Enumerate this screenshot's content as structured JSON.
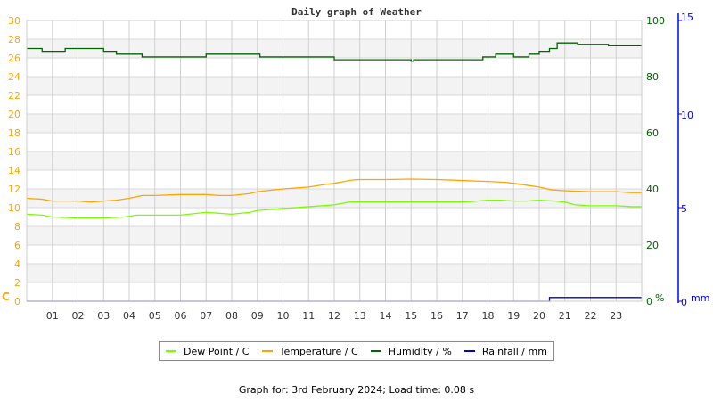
{
  "chart_data": {
    "type": "line",
    "title": "Daily graph of Weather",
    "x": [
      0,
      1,
      2,
      3,
      4,
      5,
      6,
      7,
      8,
      9,
      10,
      11,
      12,
      13,
      14,
      15,
      16,
      17,
      18,
      19,
      20,
      21,
      22,
      23,
      24
    ],
    "xticks": [
      "01",
      "02",
      "03",
      "04",
      "05",
      "06",
      "07",
      "08",
      "09",
      "10",
      "11",
      "12",
      "13",
      "14",
      "15",
      "16",
      "17",
      "18",
      "19",
      "20",
      "21",
      "22",
      "23"
    ],
    "xlim": [
      0,
      24
    ],
    "grid": true,
    "axes": {
      "left": {
        "label": "C",
        "ylim": [
          0,
          30
        ],
        "ticks": [
          0,
          2,
          4,
          6,
          8,
          10,
          12,
          14,
          16,
          18,
          20,
          22,
          24,
          26,
          28,
          30
        ],
        "color": "#ffa500"
      },
      "right1": {
        "label": "%",
        "ylim": [
          0,
          100
        ],
        "ticks": [
          0,
          20,
          40,
          60,
          80,
          100
        ],
        "color": "#006400"
      },
      "right2": {
        "label": "mm",
        "ylim": [
          0,
          15
        ],
        "ticks": [
          0,
          5,
          10,
          15
        ],
        "color": "#0000ff"
      }
    },
    "series": [
      {
        "name": "Dew Point / C",
        "axis": "left",
        "color": "#7cfc00",
        "points": [
          [
            0,
            9.3
          ],
          [
            0.6,
            9.2
          ],
          [
            1,
            9.0
          ],
          [
            2,
            8.9
          ],
          [
            3,
            8.9
          ],
          [
            3.8,
            9.0
          ],
          [
            4.3,
            9.2
          ],
          [
            4.6,
            9.2
          ],
          [
            5,
            9.2
          ],
          [
            6,
            9.2
          ],
          [
            7,
            9.5
          ],
          [
            7.5,
            9.4
          ],
          [
            8,
            9.3
          ],
          [
            8.7,
            9.5
          ],
          [
            9,
            9.7
          ],
          [
            10,
            9.9
          ],
          [
            11,
            10.1
          ],
          [
            12,
            10.3
          ],
          [
            12.6,
            10.6
          ],
          [
            13,
            10.6
          ],
          [
            15,
            10.6
          ],
          [
            16,
            10.6
          ],
          [
            17,
            10.6
          ],
          [
            17.6,
            10.7
          ],
          [
            18,
            10.8
          ],
          [
            18.5,
            10.8
          ],
          [
            19,
            10.7
          ],
          [
            19.5,
            10.7
          ],
          [
            20,
            10.8
          ],
          [
            20.6,
            10.7
          ],
          [
            21,
            10.6
          ],
          [
            21.4,
            10.3
          ],
          [
            22,
            10.2
          ],
          [
            23,
            10.2
          ],
          [
            23.6,
            10.1
          ],
          [
            24,
            10.1
          ]
        ]
      },
      {
        "name": "Temperature / C",
        "axis": "left",
        "color": "#ffa500",
        "points": [
          [
            0,
            11.0
          ],
          [
            0.6,
            10.9
          ],
          [
            1,
            10.7
          ],
          [
            2,
            10.7
          ],
          [
            2.5,
            10.6
          ],
          [
            3,
            10.7
          ],
          [
            3.5,
            10.8
          ],
          [
            4,
            11.0
          ],
          [
            4.5,
            11.3
          ],
          [
            5,
            11.3
          ],
          [
            6,
            11.4
          ],
          [
            7,
            11.4
          ],
          [
            7.5,
            11.3
          ],
          [
            8,
            11.3
          ],
          [
            8.7,
            11.5
          ],
          [
            9,
            11.7
          ],
          [
            10,
            12.0
          ],
          [
            11,
            12.2
          ],
          [
            11.7,
            12.5
          ],
          [
            12,
            12.6
          ],
          [
            12.7,
            12.95
          ],
          [
            13,
            13.0
          ],
          [
            14,
            13.0
          ],
          [
            15,
            13.05
          ],
          [
            16,
            13.0
          ],
          [
            17,
            12.9
          ],
          [
            18,
            12.8
          ],
          [
            18.7,
            12.7
          ],
          [
            19,
            12.6
          ],
          [
            19.5,
            12.4
          ],
          [
            20,
            12.2
          ],
          [
            20.5,
            11.9
          ],
          [
            21,
            11.8
          ],
          [
            22,
            11.7
          ],
          [
            23,
            11.7
          ],
          [
            23.6,
            11.6
          ],
          [
            24,
            11.6
          ]
        ]
      },
      {
        "name": "Humidity / %",
        "axis": "right1",
        "color": "#006400",
        "step": true,
        "points": [
          [
            0,
            90
          ],
          [
            0.6,
            89
          ],
          [
            1.5,
            90
          ],
          [
            3,
            89
          ],
          [
            3.5,
            88
          ],
          [
            4.5,
            87
          ],
          [
            7,
            88
          ],
          [
            9.1,
            87
          ],
          [
            12,
            86
          ],
          [
            15,
            85.5
          ],
          [
            15.1,
            86
          ],
          [
            17.8,
            87
          ],
          [
            18.3,
            88
          ],
          [
            19,
            87
          ],
          [
            19.6,
            88
          ],
          [
            20,
            89
          ],
          [
            20.4,
            90
          ],
          [
            20.7,
            92
          ],
          [
            21.5,
            91.5
          ],
          [
            22.7,
            91
          ],
          [
            24,
            91
          ]
        ]
      },
      {
        "name": "Rainfall / mm",
        "axis": "right2",
        "color": "#0000cd",
        "step": true,
        "points": [
          [
            0,
            0
          ],
          [
            20.4,
            0.2
          ],
          [
            24,
            0.2
          ]
        ]
      }
    ]
  },
  "footer": "Graph for: 3rd February 2024; Load time: 0.08 s"
}
